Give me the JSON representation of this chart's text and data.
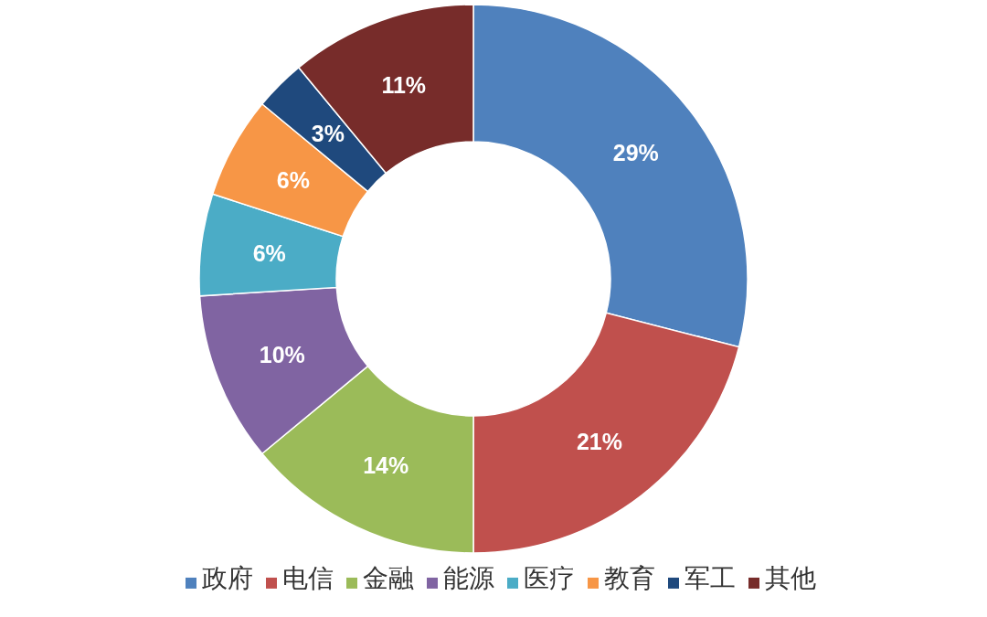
{
  "chart_data": {
    "type": "donut",
    "categories": [
      "政府",
      "电信",
      "金融",
      "能源",
      "医疗",
      "教育",
      "军工",
      "其他"
    ],
    "values": [
      29,
      21,
      14,
      10,
      6,
      6,
      3,
      11
    ],
    "colors": [
      "#4f81bd",
      "#c0504d",
      "#9bbb59",
      "#8064a2",
      "#4bacc6",
      "#f79646",
      "#1f497d",
      "#772c2a"
    ],
    "value_labels": [
      "29%",
      "21%",
      "14%",
      "10%",
      "6%",
      "6%",
      "3%",
      "11%"
    ],
    "legend": "bottom"
  }
}
